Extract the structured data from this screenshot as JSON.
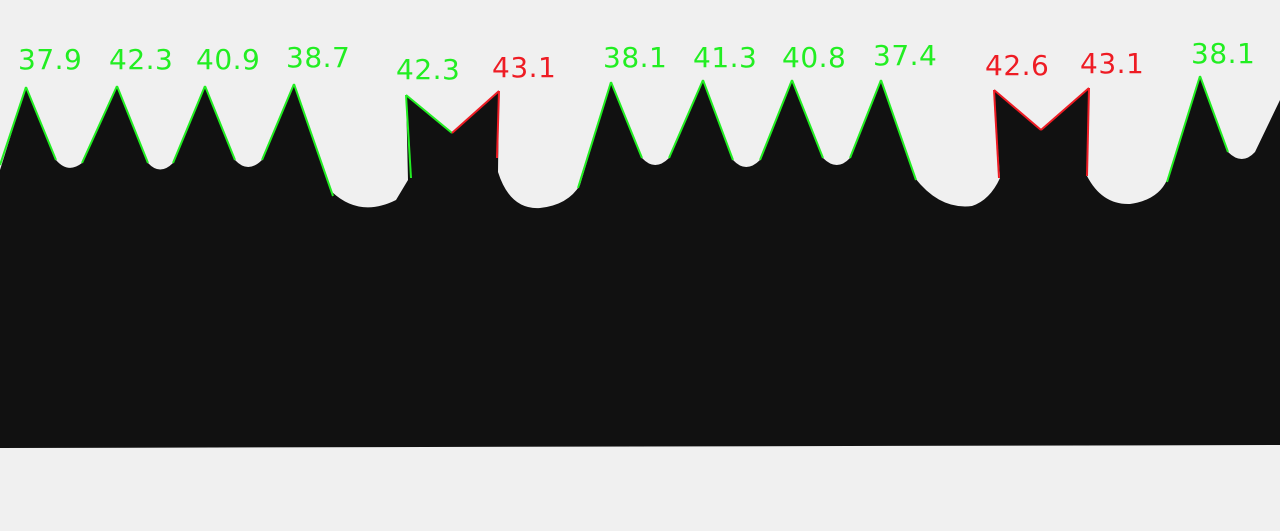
{
  "colors": {
    "background": "#f0f0f0",
    "blade": "#101010",
    "pass": "#22ee22",
    "fail": "#ee1c24"
  },
  "measurements": [
    {
      "value": "37.9",
      "status": "pass"
    },
    {
      "value": "42.3",
      "status": "pass"
    },
    {
      "value": "40.9",
      "status": "pass"
    },
    {
      "value": "38.7",
      "status": "pass"
    },
    {
      "value": "42.3",
      "status": "pass"
    },
    {
      "value": "43.1",
      "status": "fail"
    },
    {
      "value": "38.1",
      "status": "pass"
    },
    {
      "value": "41.3",
      "status": "pass"
    },
    {
      "value": "40.8",
      "status": "pass"
    },
    {
      "value": "37.4",
      "status": "pass"
    },
    {
      "value": "42.6",
      "status": "fail"
    },
    {
      "value": "43.1",
      "status": "fail"
    },
    {
      "value": "38.1",
      "status": "pass"
    }
  ]
}
